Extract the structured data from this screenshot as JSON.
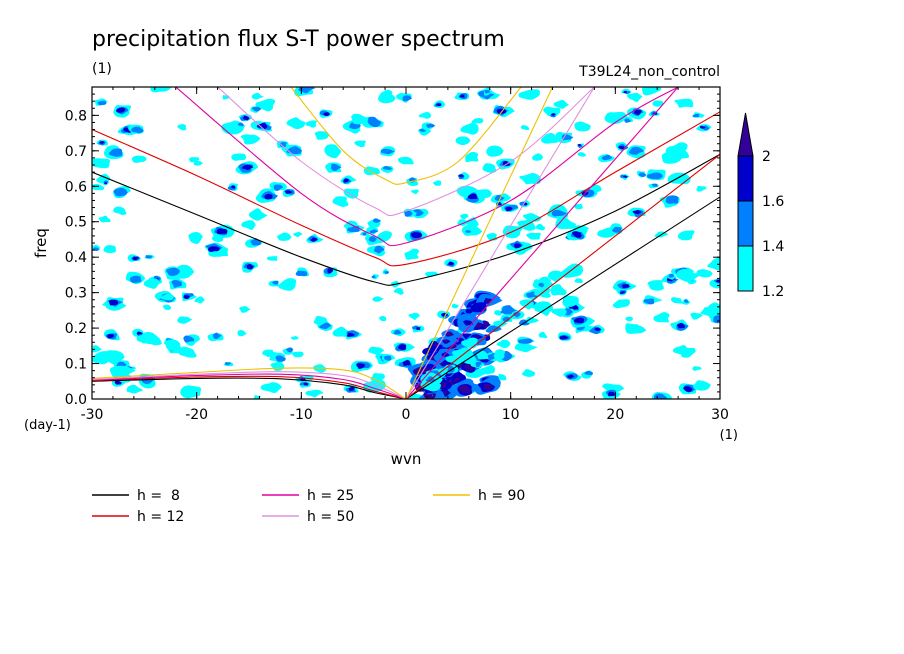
{
  "chart_data": {
    "type": "heatmap",
    "title": "precipitation flux S-T power spectrum",
    "subtitle_left": "(1)",
    "subtitle_right": "T39L24_non_control",
    "xlabel": "wvn",
    "ylabel": "freq",
    "x_unit": "(1)",
    "y_unit": "(day-1)",
    "xlim": [
      -30,
      30
    ],
    "ylim": [
      0,
      0.88
    ],
    "x_ticks": [
      {
        "value": -30,
        "label": "-30"
      },
      {
        "value": -20,
        "label": "-20"
      },
      {
        "value": -10,
        "label": "-10"
      },
      {
        "value": 0,
        "label": "0"
      },
      {
        "value": 10,
        "label": "10"
      },
      {
        "value": 20,
        "label": "20"
      },
      {
        "value": 30,
        "label": "30"
      }
    ],
    "y_ticks": [
      {
        "value": 0,
        "label": "0.0"
      },
      {
        "value": 0.1,
        "label": "0.1"
      },
      {
        "value": 0.2,
        "label": "0.2"
      },
      {
        "value": 0.3,
        "label": "0.3"
      },
      {
        "value": 0.4,
        "label": "0.4"
      },
      {
        "value": 0.5,
        "label": "0.5"
      },
      {
        "value": 0.6,
        "label": "0.6"
      },
      {
        "value": 0.7,
        "label": "0.7"
      },
      {
        "value": 0.8,
        "label": "0.8"
      }
    ],
    "colorbar": {
      "levels": [
        {
          "from": 1.2,
          "to": 1.4,
          "color": "#00ffff"
        },
        {
          "from": 1.4,
          "to": 1.6,
          "color": "#0080ff"
        },
        {
          "from": 1.6,
          "to": 2.0,
          "color": "#0000cc"
        },
        {
          "from": 2.0,
          "to": null,
          "color": "#330099"
        }
      ],
      "labels": [
        {
          "value": 1.2,
          "label": "1.2"
        },
        {
          "value": 1.4,
          "label": "1.4"
        },
        {
          "value": 1.6,
          "label": "1.6"
        },
        {
          "value": 2.0,
          "label": "2"
        }
      ]
    },
    "dispersion_curves": [
      {
        "name": "h =  8",
        "h": 8,
        "color": "#000000",
        "kelvin": [
          [
            0,
            0
          ],
          [
            30,
            0.57
          ]
        ],
        "rossby": [
          [
            -30,
            0.05
          ],
          [
            -20,
            0.058
          ],
          [
            -12,
            0.057
          ],
          [
            -6,
            0.04
          ],
          [
            -3,
            0.018
          ],
          [
            0,
            0
          ]
        ],
        "gravity": [
          [
            -30,
            0.64
          ],
          [
            -20,
            0.52
          ],
          [
            -10,
            0.4
          ],
          [
            -3,
            0.33
          ],
          [
            0,
            0.33
          ],
          [
            10,
            0.41
          ],
          [
            20,
            0.53
          ],
          [
            30,
            0.69
          ]
        ]
      },
      {
        "name": "h = 12",
        "h": 12,
        "color": "#e00000",
        "kelvin": [
          [
            0,
            0
          ],
          [
            30,
            0.69
          ]
        ],
        "rossby": [
          [
            -30,
            0.052
          ],
          [
            -20,
            0.062
          ],
          [
            -12,
            0.063
          ],
          [
            -6,
            0.046
          ],
          [
            -3,
            0.022
          ],
          [
            0,
            0
          ]
        ],
        "gravity": [
          [
            -30,
            0.76
          ],
          [
            -20,
            0.63
          ],
          [
            -10,
            0.49
          ],
          [
            -3,
            0.4
          ],
          [
            0,
            0.38
          ],
          [
            10,
            0.47
          ],
          [
            20,
            0.64
          ],
          [
            30,
            0.81
          ]
        ]
      },
      {
        "name": "h = 25",
        "h": 25,
        "color": "#e000a0",
        "kelvin": [
          [
            0,
            0
          ],
          [
            26,
            0.88
          ]
        ],
        "rossby": [
          [
            -30,
            0.054
          ],
          [
            -20,
            0.066
          ],
          [
            -12,
            0.07
          ],
          [
            -6,
            0.055
          ],
          [
            -3,
            0.03
          ],
          [
            0,
            0
          ]
        ],
        "gravity": [
          [
            -22,
            0.88
          ],
          [
            -10,
            0.58
          ],
          [
            -3,
            0.46
          ],
          [
            0,
            0.44
          ],
          [
            10,
            0.56
          ],
          [
            20,
            0.78
          ],
          [
            26,
            0.88
          ]
        ]
      },
      {
        "name": "h = 50",
        "h": 50,
        "color": "#e090e0",
        "kelvin": [
          [
            0,
            0
          ],
          [
            18,
            0.88
          ]
        ],
        "rossby": [
          [
            -30,
            0.055
          ],
          [
            -20,
            0.07
          ],
          [
            -12,
            0.077
          ],
          [
            -6,
            0.066
          ],
          [
            -3,
            0.04
          ],
          [
            0,
            0
          ]
        ],
        "gravity": [
          [
            -18,
            0.88
          ],
          [
            -10,
            0.67
          ],
          [
            -3,
            0.54
          ],
          [
            0,
            0.53
          ],
          [
            10,
            0.67
          ],
          [
            18,
            0.88
          ]
        ]
      },
      {
        "name": "h = 90",
        "h": 90,
        "color": "#f0c000",
        "kelvin": [
          [
            0,
            0
          ],
          [
            14,
            0.88
          ]
        ],
        "rossby": [
          [
            -30,
            0.058
          ],
          [
            -20,
            0.075
          ],
          [
            -12,
            0.087
          ],
          [
            -6,
            0.082
          ],
          [
            -3,
            0.055
          ],
          [
            0,
            0
          ]
        ],
        "gravity": [
          [
            -11,
            0.88
          ],
          [
            -6,
            0.7
          ],
          [
            -2,
            0.62
          ],
          [
            0,
            0.61
          ],
          [
            5,
            0.67
          ],
          [
            11,
            0.88
          ]
        ]
      }
    ],
    "grid": false,
    "legend_position": "bottom-left"
  }
}
